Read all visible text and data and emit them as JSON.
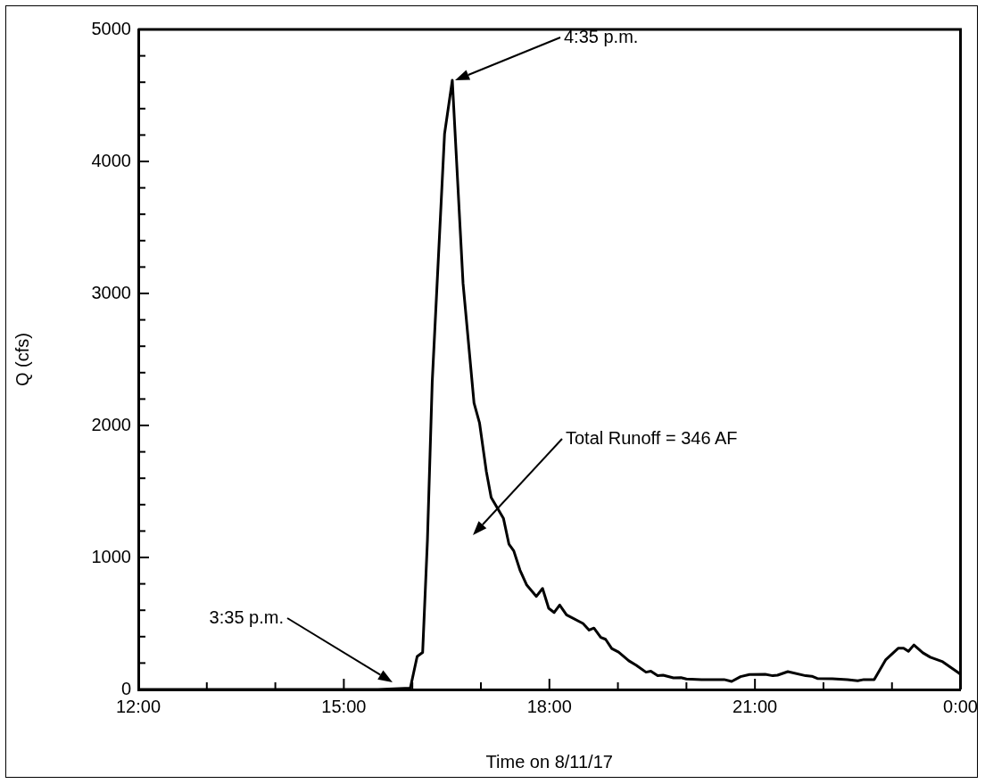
{
  "chart_data": {
    "type": "line",
    "xlabel": "Time on 8/11/17",
    "ylabel": "Q (cfs)",
    "x": [
      12,
      15.5,
      15.97,
      16.07,
      16.15,
      16.22,
      16.29,
      16.47,
      16.583,
      16.74,
      16.9,
      16.98,
      17.08,
      17.15,
      17.33,
      17.41,
      17.48,
      17.57,
      17.67,
      17.81,
      17.9,
      17.99,
      18.07,
      18.15,
      18.25,
      18.49,
      18.58,
      18.65,
      18.75,
      18.82,
      18.91,
      19.01,
      19.16,
      19.27,
      19.41,
      19.48,
      19.58,
      19.66,
      19.81,
      19.92,
      20,
      20.22,
      20.55,
      20.66,
      20.79,
      20.92,
      21.15,
      21.26,
      21.33,
      21.48,
      21.74,
      21.83,
      21.91,
      22.13,
      22.35,
      22.5,
      22.59,
      22.74,
      22.91,
      23.09,
      23.17,
      23.24,
      23.32,
      23.45,
      23.56,
      23.74,
      23.97,
      24
    ],
    "series": [
      {
        "color": "#000000",
        "values": [
          0,
          0,
          10,
          250,
          280,
          1130,
          2330,
          4210,
          4615,
          3075,
          2170,
          2020,
          1650,
          1455,
          1295,
          1100,
          1050,
          905,
          790,
          705,
          765,
          615,
          583,
          640,
          565,
          500,
          450,
          465,
          395,
          380,
          310,
          283,
          217,
          183,
          131,
          138,
          104,
          108,
          88,
          90,
          79,
          75,
          75,
          61,
          97,
          113,
          115,
          104,
          108,
          135,
          104,
          100,
          83,
          81,
          75,
          66,
          75,
          75,
          226,
          312,
          312,
          289,
          337,
          278,
          244,
          210,
          127,
          115
        ]
      }
    ],
    "xlim": [
      12,
      24
    ],
    "xticks": [
      {
        "value": 12,
        "label": "12:00"
      },
      {
        "value": 13,
        "label": null
      },
      {
        "value": 14,
        "label": null
      },
      {
        "value": 15,
        "label": "15:00"
      },
      {
        "value": 16,
        "label": null
      },
      {
        "value": 17,
        "label": null
      },
      {
        "value": 18,
        "label": "18:00"
      },
      {
        "value": 19,
        "label": null
      },
      {
        "value": 20,
        "label": null
      },
      {
        "value": 21,
        "label": "21:00"
      },
      {
        "value": 22,
        "label": null
      },
      {
        "value": 23,
        "label": null
      },
      {
        "value": 24,
        "label": "0:00"
      }
    ],
    "ylim": [
      0,
      5000
    ],
    "yticks": [
      0,
      {
        "value": 200,
        "label": null
      },
      {
        "value": 400,
        "label": null
      },
      {
        "value": 600,
        "label": null
      },
      {
        "value": 800,
        "label": null
      },
      1000,
      {
        "value": 1200,
        "label": null
      },
      {
        "value": 1400,
        "label": null
      },
      {
        "value": 1600,
        "label": null
      },
      {
        "value": 1800,
        "label": null
      },
      2000,
      {
        "value": 2200,
        "label": null
      },
      {
        "value": 2400,
        "label": null
      },
      {
        "value": 2600,
        "label": null
      },
      {
        "value": 2800,
        "label": null
      },
      3000,
      {
        "value": 3200,
        "label": null
      },
      {
        "value": 3400,
        "label": null
      },
      {
        "value": 3600,
        "label": null
      },
      {
        "value": 3800,
        "label": null
      },
      4000,
      {
        "value": 4200,
        "label": null
      },
      {
        "value": 4400,
        "label": null
      },
      {
        "value": 4600,
        "label": null
      },
      {
        "value": 4800,
        "label": null
      },
      5000
    ],
    "grid": false,
    "legend": false,
    "marker": "none",
    "line_style": "solid",
    "annotations": [
      "4:35 p.m.",
      "3:35 p.m.",
      "Total Runoff = 346 AF"
    ]
  }
}
